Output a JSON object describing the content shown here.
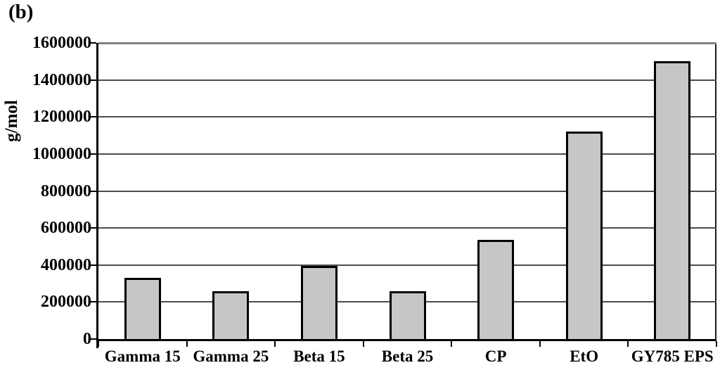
{
  "figure_label": "(b)",
  "chart_data": {
    "type": "bar",
    "title": "",
    "xlabel": "",
    "ylabel": "g/mol",
    "categories": [
      "Gamma 15",
      "Gamma 25",
      "Beta 15",
      "Beta 25",
      "CP",
      "EtO",
      "GY785 EPS"
    ],
    "values": [
      330000,
      260000,
      395000,
      260000,
      535000,
      1120000,
      1500000
    ],
    "ylim": [
      0,
      1600000
    ],
    "ytick_interval": 200000,
    "ytick_labels": [
      "0",
      "200000",
      "400000",
      "600000",
      "800000",
      "1000000",
      "1200000",
      "1400000",
      "1600000"
    ],
    "grid": true,
    "legend": "none",
    "colors": {
      "bar_fill": "#c6c6c6",
      "bar_border": "#000000",
      "gridline": "#4d4d4d",
      "top_gridline": "#808080",
      "axis": "#000000",
      "text": "#000000",
      "background": "#ffffff"
    }
  }
}
